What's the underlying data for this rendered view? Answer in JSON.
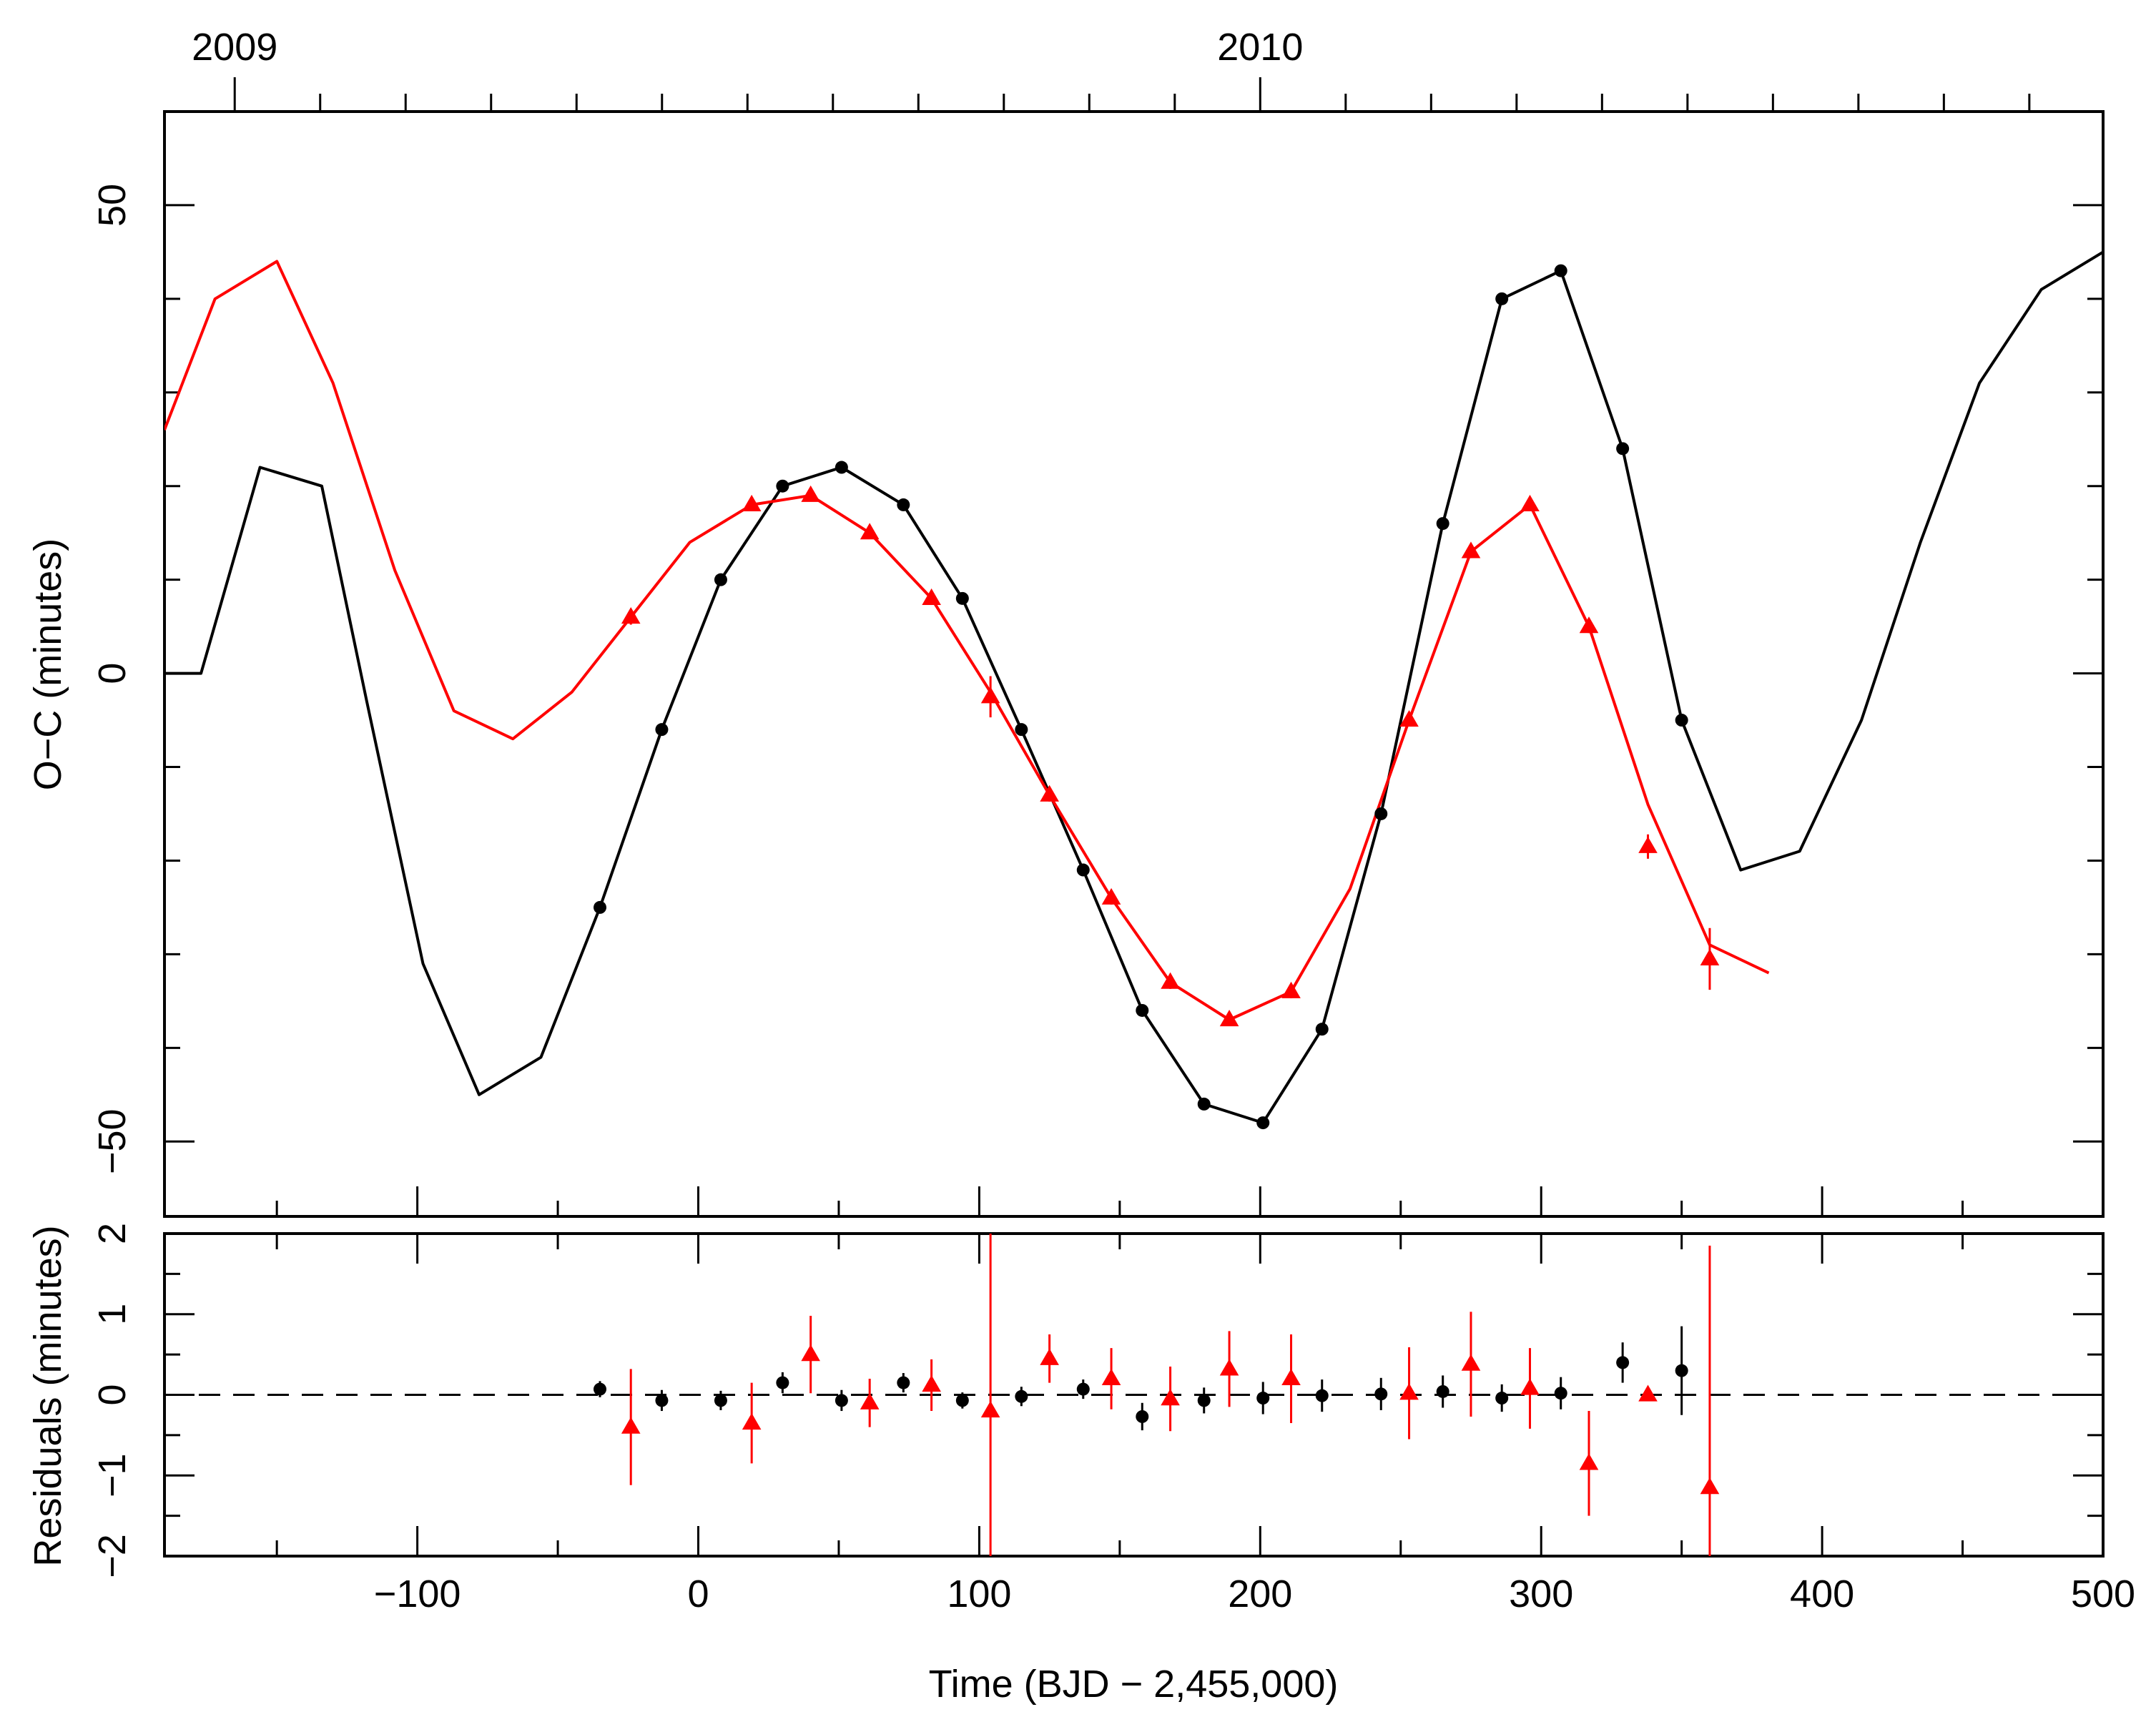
{
  "chart_data": [
    {
      "type": "line",
      "panel": "top",
      "ylabel": "O−C (minutes)",
      "xlim": [
        -190,
        500
      ],
      "ylim": [
        -58,
        60
      ],
      "yticks_labeled": [
        50,
        0,
        -50
      ],
      "ytick_labels": [
        "50",
        "0",
        "−50"
      ],
      "top_axis": {
        "labels": [
          "2009",
          "2010"
        ],
        "label_x": [
          -165,
          200
        ]
      },
      "series": [
        {
          "name": "black model",
          "color": "#000000",
          "x": [
            -190,
            -177,
            -156,
            -134,
            -118,
            -98,
            -78,
            -56,
            -35,
            -13,
            8,
            30,
            51,
            73,
            94,
            115,
            137,
            158,
            180,
            201,
            222,
            243,
            265,
            286,
            307,
            329,
            350,
            371,
            392,
            414,
            435,
            456,
            478,
            500
          ],
          "y": [
            0,
            0,
            22,
            20,
            -3,
            -31,
            -45,
            -41,
            -25,
            -6,
            10,
            20,
            22,
            18,
            8,
            -6,
            -21,
            -36,
            -46,
            -48,
            -38,
            -15,
            16,
            40,
            43,
            24,
            -5,
            -21,
            -19,
            -5,
            14,
            31,
            41,
            45
          ]
        },
        {
          "name": "black points",
          "color": "#000000",
          "marker": "circle",
          "x": [
            -35,
            -13,
            8,
            30,
            51,
            73,
            94,
            115,
            137,
            158,
            180,
            201,
            222,
            243,
            265,
            286,
            307,
            329,
            350
          ],
          "y": [
            -25,
            -6,
            10,
            20,
            22,
            18,
            8,
            -6,
            -21,
            -36,
            -46,
            -48,
            -38,
            -15,
            16,
            40,
            43,
            24,
            -5
          ]
        },
        {
          "name": "red model",
          "color": "#ff0000",
          "x": [
            -190,
            -172,
            -150,
            -130,
            -108,
            -87,
            -66,
            -45,
            -24,
            -3,
            19,
            40,
            61,
            83,
            104,
            125,
            147,
            168,
            189,
            211,
            232,
            253,
            275,
            296,
            317,
            338,
            360,
            381
          ],
          "y": [
            26,
            40,
            44,
            31,
            11,
            -4,
            -7,
            -2,
            6,
            14,
            18,
            19,
            15,
            8,
            -2,
            -13,
            -24,
            -33,
            -37,
            -34,
            -23,
            -5,
            13,
            18,
            5,
            -14,
            -29,
            -32
          ]
        },
        {
          "name": "red points",
          "color": "#ff0000",
          "marker": "triangle",
          "x": [
            -24,
            19,
            40,
            61,
            83,
            104,
            125,
            147,
            168,
            189,
            211,
            253,
            275,
            296,
            317,
            338,
            360
          ],
          "y": [
            6,
            18,
            19,
            15,
            8,
            -2.5,
            -13,
            -24,
            -33,
            -37,
            -34,
            -5,
            13,
            18,
            5,
            -18.5,
            -30.5
          ],
          "err": [
            0.8,
            0.6,
            0.6,
            0.6,
            0.7,
            2.2,
            0.7,
            0.7,
            0.7,
            0.6,
            0.7,
            0.6,
            0.7,
            0.6,
            0.7,
            1.3,
            3.3
          ]
        }
      ]
    },
    {
      "type": "scatter",
      "panel": "bottom",
      "title": "",
      "xlabel": "Time (BJD − 2,455,000)",
      "ylabel": "Residuals (minutes)",
      "xlim": [
        -190,
        500
      ],
      "ylim": [
        -2,
        2
      ],
      "xticks": [
        -100,
        0,
        100,
        200,
        300,
        400,
        500
      ],
      "xtick_labels": [
        "−100",
        "0",
        "100",
        "200",
        "300",
        "400",
        "500"
      ],
      "yticks": [
        2,
        1,
        0,
        -1,
        -2
      ],
      "ytick_labels": [
        "2",
        "1",
        "0",
        "−1",
        "−2"
      ],
      "zero_line": "dashed",
      "series": [
        {
          "name": "black residuals",
          "color": "#000000",
          "marker": "circle",
          "x": [
            -35,
            -13,
            8,
            30,
            51,
            73,
            94,
            115,
            137,
            158,
            180,
            201,
            222,
            243,
            265,
            286,
            307,
            329,
            350
          ],
          "y": [
            0.07,
            -0.07,
            -0.07,
            0.15,
            -0.07,
            0.15,
            -0.07,
            -0.02,
            0.07,
            -0.27,
            -0.07,
            -0.04,
            -0.01,
            0.01,
            0.04,
            -0.04,
            0.02,
            0.4,
            0.3
          ],
          "err": [
            0.1,
            0.13,
            0.12,
            0.13,
            0.13,
            0.12,
            0.1,
            0.12,
            0.12,
            0.17,
            0.16,
            0.2,
            0.2,
            0.2,
            0.2,
            0.17,
            0.2,
            0.25,
            0.55
          ]
        },
        {
          "name": "red residuals",
          "color": "#ff0000",
          "marker": "triangle",
          "x": [
            -24,
            19,
            40,
            61,
            83,
            104,
            125,
            147,
            168,
            189,
            211,
            253,
            275,
            296,
            317,
            338,
            360
          ],
          "y": [
            -0.4,
            -0.35,
            0.5,
            -0.1,
            0.12,
            -0.2,
            0.45,
            0.2,
            -0.05,
            0.32,
            0.2,
            0.02,
            0.38,
            0.08,
            -0.85,
            0,
            -1.15
          ],
          "err": [
            0.72,
            0.5,
            0.48,
            0.3,
            0.32,
            2.2,
            0.3,
            0.38,
            0.4,
            0.47,
            0.55,
            0.57,
            0.65,
            0.5,
            0.65,
            0,
            3.0
          ]
        }
      ]
    }
  ]
}
